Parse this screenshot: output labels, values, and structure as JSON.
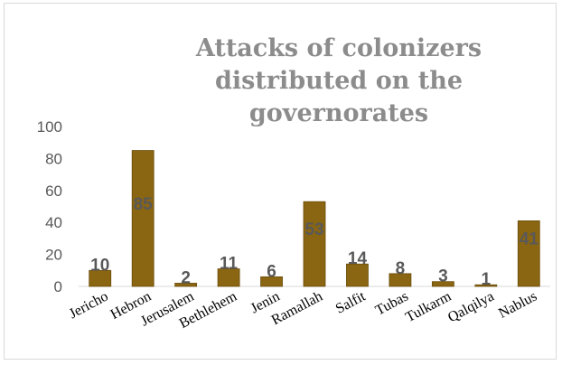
{
  "chart_data": {
    "type": "bar",
    "title": "Attacks of colonizers distributed on the governorates",
    "xlabel": "",
    "ylabel": "",
    "categories": [
      "Jericho",
      "Hebron",
      "Jerusalem",
      "Bethlehem",
      "Jenin",
      "Ramallah",
      "Salfit",
      "Tubas",
      "Tulkarm",
      "Qalqilya",
      "Nablus"
    ],
    "values": [
      10,
      85,
      2,
      11,
      6,
      53,
      14,
      8,
      3,
      1,
      41
    ],
    "ylim": [
      0,
      100
    ],
    "yticks": [
      0,
      20,
      40,
      60,
      80,
      100
    ],
    "grid": false,
    "legend": "none",
    "colors": {
      "bar": "#8a6512",
      "bar_edge": "#6b4c0a",
      "label_bg": "#f2f2f2"
    }
  }
}
